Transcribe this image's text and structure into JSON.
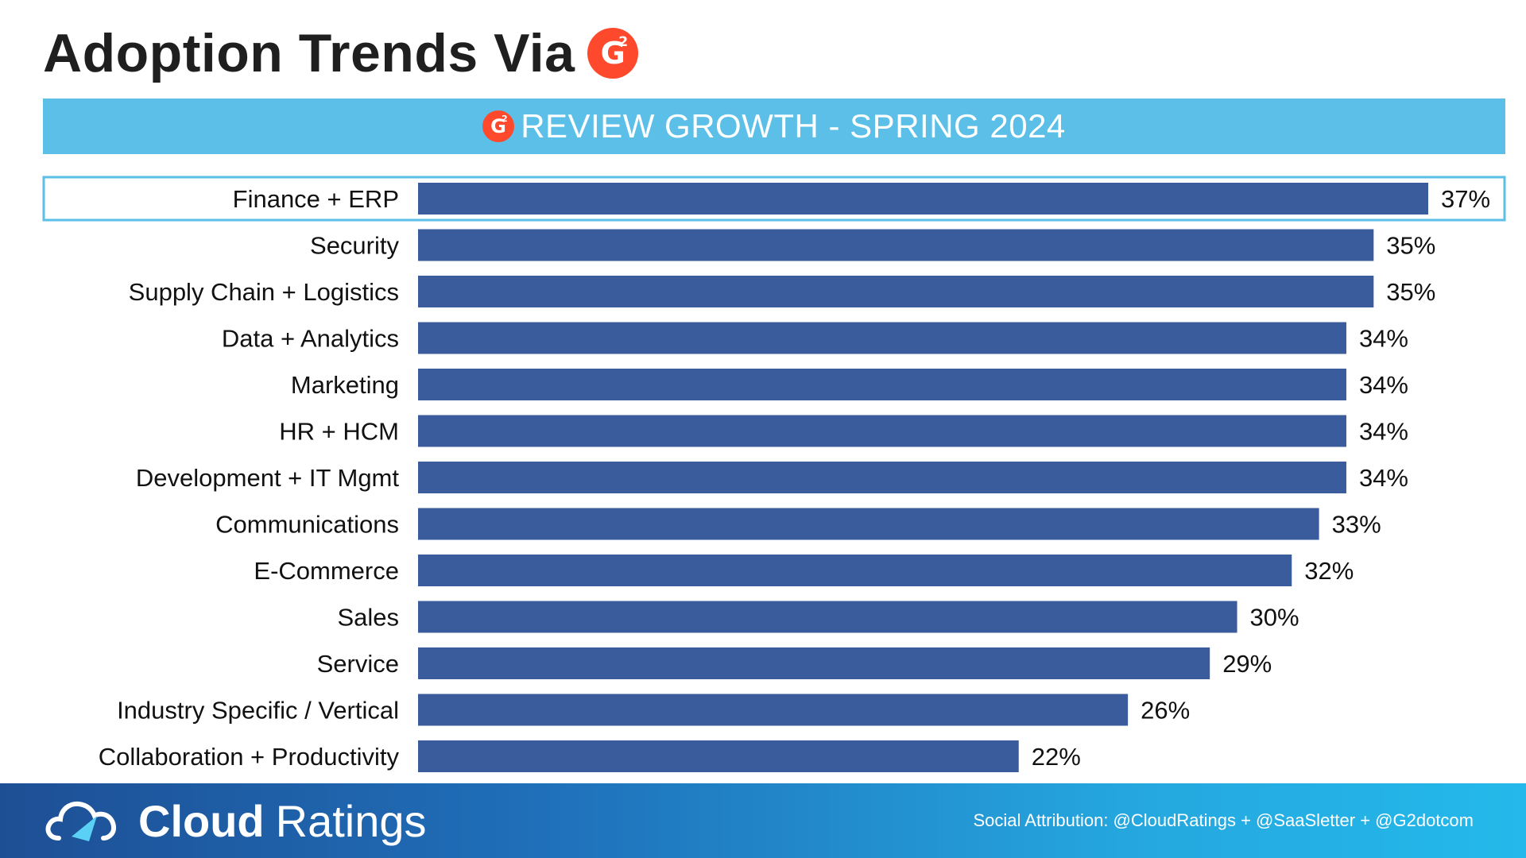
{
  "header": {
    "title": "Adoption Trends Via",
    "logo_text": "G",
    "logo_sup": "2",
    "logo_icon": "g2-logo-icon",
    "banner_text": "REVIEW GROWTH - SPRING 2024"
  },
  "chart_data": {
    "type": "bar",
    "orientation": "horizontal",
    "categories": [
      "Finance + ERP",
      "Security",
      "Supply Chain + Logistics",
      "Data + Analytics",
      "Marketing",
      "HR + HCM",
      "Development + IT Mgmt",
      "Communications",
      "E-Commerce",
      "Sales",
      "Service",
      "Industry Specific / Vertical",
      "Collaboration + Productivity"
    ],
    "values": [
      37,
      35,
      35,
      34,
      34,
      34,
      34,
      33,
      32,
      30,
      29,
      26,
      22
    ],
    "data_labels": [
      "37%",
      "35%",
      "35%",
      "34%",
      "34%",
      "34%",
      "34%",
      "33%",
      "32%",
      "30%",
      "29%",
      "26%",
      "22%"
    ],
    "highlighted_category": "Finance + ERP",
    "bar_color": "#3a5b9c",
    "highlight_color": "#5bbfe8",
    "grid": false
  },
  "footer": {
    "brand_bold": "Cloud",
    "brand_light": "Ratings",
    "logo_icon": "cloud-gauge-icon",
    "attribution": "Social Attribution: @CloudRatings + @SaaSletter + @G2dotcom"
  },
  "colors": {
    "banner": "#5bbfe8",
    "g2_red": "#ff492c",
    "bar": "#3a5b9c"
  }
}
